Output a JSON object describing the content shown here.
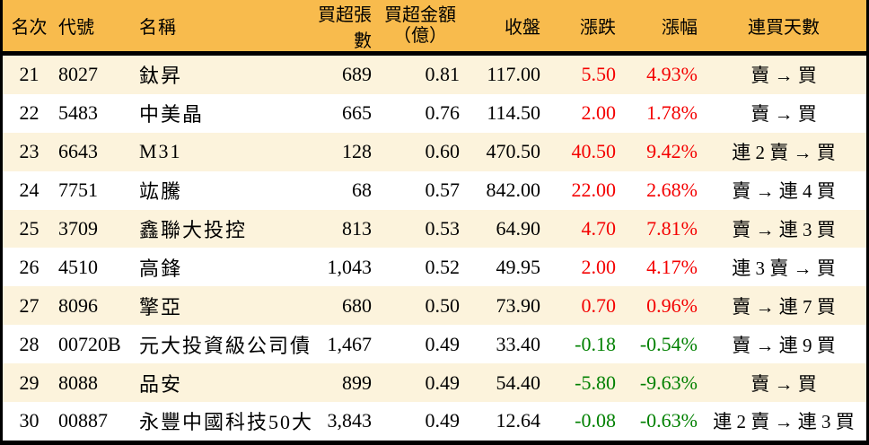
{
  "colors": {
    "header_bg": "#F8BB4D",
    "stripe_bg": "#FCF3DC",
    "row_bg": "#FFFFFF",
    "up_red": "#F40000",
    "down_green": "#008000",
    "border_black": "#000000",
    "text": "#000000"
  },
  "chart_data": {
    "type": "table",
    "title": "",
    "columns": [
      {
        "label": "名次"
      },
      {
        "label": "代號"
      },
      {
        "label": "名稱"
      },
      {
        "label": "買超張數"
      },
      {
        "label": "買超金額",
        "label2": "（億）"
      },
      {
        "label": "收盤"
      },
      {
        "label": "漲跌"
      },
      {
        "label": "漲幅"
      },
      {
        "label": "連買天數"
      }
    ],
    "rows": [
      {
        "rank": "21",
        "code": "8027",
        "name": "鈦昇",
        "volume": "689",
        "amount": "0.81",
        "close": "117.00",
        "change": "5.50",
        "change_pct": "4.93%",
        "streak": "賣 → 買",
        "direction": "up"
      },
      {
        "rank": "22",
        "code": "5483",
        "name": "中美晶",
        "volume": "665",
        "amount": "0.76",
        "close": "114.50",
        "change": "2.00",
        "change_pct": "1.78%",
        "streak": "賣 → 買",
        "direction": "up"
      },
      {
        "rank": "23",
        "code": "6643",
        "name": "M31",
        "volume": "128",
        "amount": "0.60",
        "close": "470.50",
        "change": "40.50",
        "change_pct": "9.42%",
        "streak": "連 2 賣 → 買",
        "direction": "up"
      },
      {
        "rank": "24",
        "code": "7751",
        "name": "竑騰",
        "volume": "68",
        "amount": "0.57",
        "close": "842.00",
        "change": "22.00",
        "change_pct": "2.68%",
        "streak": "賣 → 連 4 買",
        "direction": "up"
      },
      {
        "rank": "25",
        "code": "3709",
        "name": "鑫聯大投控",
        "volume": "813",
        "amount": "0.53",
        "close": "64.90",
        "change": "4.70",
        "change_pct": "7.81%",
        "streak": "賣 → 連 3 買",
        "direction": "up"
      },
      {
        "rank": "26",
        "code": "4510",
        "name": "高鋒",
        "volume": "1,043",
        "amount": "0.52",
        "close": "49.95",
        "change": "2.00",
        "change_pct": "4.17%",
        "streak": "連 3 賣 → 買",
        "direction": "up"
      },
      {
        "rank": "27",
        "code": "8096",
        "name": "擎亞",
        "volume": "680",
        "amount": "0.50",
        "close": "73.90",
        "change": "0.70",
        "change_pct": "0.96%",
        "streak": "賣 → 連 7 買",
        "direction": "up"
      },
      {
        "rank": "28",
        "code": "00720B",
        "name": "元大投資級公司債",
        "volume": "1,467",
        "amount": "0.49",
        "close": "33.40",
        "change": "-0.18",
        "change_pct": "-0.54%",
        "streak": "賣 → 連 9 買",
        "direction": "down"
      },
      {
        "rank": "29",
        "code": "8088",
        "name": "品安",
        "volume": "899",
        "amount": "0.49",
        "close": "54.40",
        "change": "-5.80",
        "change_pct": "-9.63%",
        "streak": "賣 → 買",
        "direction": "down"
      },
      {
        "rank": "30",
        "code": "00887",
        "name": "永豐中國科技50大",
        "volume": "3,843",
        "amount": "0.49",
        "close": "12.64",
        "change": "-0.08",
        "change_pct": "-0.63%",
        "streak": "連 2 賣 → 連 3 買",
        "direction": "down"
      }
    ]
  }
}
